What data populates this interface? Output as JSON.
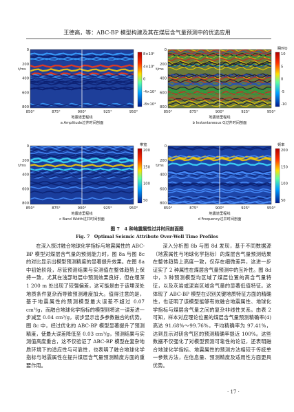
{
  "header": {
    "title": "王德高，等：ABC-BP 模型构建及其在煤层含气量预测中的优选应用"
  },
  "figure": {
    "panels": [
      {
        "caption": "a Amplitude过井时间剖面",
        "colorbar_title": "",
        "colorbar_ticks": [
          "8×10⁴",
          "4×10⁴",
          "0",
          "-4×10⁴",
          "-8×10⁴"
        ],
        "y_label": "t/ms",
        "y_ticks": [
          "0",
          "200",
          "400",
          "600",
          "800"
        ],
        "x_ticks": [
          "850°",
          "875°",
          "900°",
          "925°",
          "950°"
        ],
        "x_label": "地震道里程线"
      },
      {
        "caption": "b Instantaneous Q过井时间剖面",
        "colorbar_title": "瞬时Q",
        "colorbar_ticks": [
          "10",
          "5",
          "0",
          "-5",
          "-10"
        ],
        "y_label": "t/ms",
        "y_ticks": [
          "0",
          "200",
          "400",
          "600",
          "800"
        ],
        "x_ticks": [
          "850°",
          "875°",
          "900°",
          "925°",
          "950°"
        ],
        "x_label": "地震道里程线"
      },
      {
        "caption": "c Band Width过井时间剖面",
        "colorbar_title": "带宽",
        "colorbar_ticks": [
          "200",
          "150",
          "100",
          "50"
        ],
        "y_label": "t/ms",
        "y_ticks": [
          "0",
          "200",
          "400",
          "600",
          "800"
        ],
        "x_ticks": [
          "850°",
          "875°",
          "900°",
          "925°",
          "950°"
        ],
        "x_label": "地震道里程线"
      },
      {
        "caption": "d Frequency过井时间剖面",
        "colorbar_title": "频率",
        "colorbar_ticks": [
          "200",
          "150",
          "100",
          "50"
        ],
        "y_label": "t/ms",
        "y_ticks": [
          "0",
          "200",
          "400",
          "600",
          "800"
        ],
        "x_ticks": [
          "850°",
          "875°",
          "900°",
          "925°",
          "950°"
        ],
        "x_label": "地震道里程线"
      }
    ],
    "caption_cn": "图 7　4 种地震属性过井时间剖面图",
    "caption_en": "Fig. 7　Optimal Seismic Attribute Over-Well Time Profiles"
  },
  "body": {
    "left": "在深入探讨融合地球化学指标与地震属性的 ABC-BP 模型对煤层含气量的预测能力时，图 8a 与图 8c 的对比显示出模型预测精度的显著提升效果。在图 8a 中初始阶段，尽管预测结果与实测值在整体趋势上保持一致，尤其在浅部地层中预测效果良好，但在埋深 1 200 m 处出现了较强偏差，这可能是由于该埋深处地质条件复杂而导致预测难度加大。值得注意的是，基于地震属性的预测模型最大误差不超过 0.07 cm³/g，而融合地球化学指标的模型则将这一误差进一步减至 0.04 cm³/g，初步显示出多参数融合的优势。图 8c 中，经过优化的 ABC-BP 模型显著提升了预测精度，使最大误差降低至 0.03 cm³/g，预测结果与实测值高度重合，这不仅验证了 ABC-BP 模型在复杂地质环境下的适应性与可靠性，也表明了融合地球化学指标与地震属性在提升煤层含气量预测精度方面的重要作用。",
    "right": "深入分析图 8b 与图 8d 发现，基于不同数据源（地震属性与地球化学指标）的煤层含气量预测结果在整体趋势上高度一致，仅存在细微差异，这进一步证实了 2 种属性在煤层含气量预测中的互补性。图 8d 中，3 种预测模型均区域了煤层位置的高含气量特征，以及灰岩或泥岩区域含气量的显著低值特征。这体现了 ABC-BP 模型在识别关键地质特征方面的精确性，也证明了该模型能够有效融合地震属性、地球化学指标与煤层含气量之间的复杂非线性关系。由表 2 可知，样本对应理论位置的煤层含气量预测精确率(4)高达 91.68%～99.76%，平均精确率为 97.41%，达到显示对研含气区的预测精确率提近 100%。这些数据不仅强化了对模型预测可靠性的论证，还表明融合地球化学指标、地震属性的预测方法相较于传统单一参数方法，在信息量、预测精度及适用性方面更具优势。"
  },
  "page_number": "· 17 ·"
}
